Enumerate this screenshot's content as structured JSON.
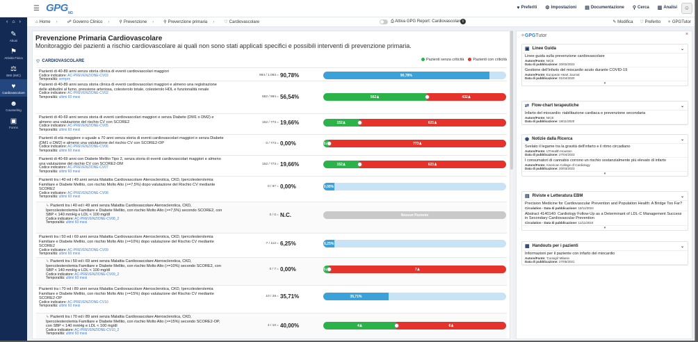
{
  "app": {
    "logo": "GPG",
    "logo_sub": "NG"
  },
  "topnav": {
    "preferiti": "Preferiti",
    "impostazioni": "Impostazioni",
    "documentazione": "Documentazione",
    "cerca": "Cerca",
    "analisi": "Analisi"
  },
  "sidebar": {
    "items": [
      {
        "label": "Abusi",
        "icon": "wrench-icon"
      },
      {
        "label": "Attività Fisica",
        "icon": "running-icon"
      },
      {
        "label": "BMI (IMC)",
        "icon": "scale-icon"
      },
      {
        "label": "Cardiovascolare",
        "icon": "heart-icon"
      },
      {
        "label": "Counseling",
        "icon": "people-icon"
      },
      {
        "label": "Forms",
        "icon": "clipboard-icon"
      }
    ]
  },
  "breadcrumb": {
    "home": "Home",
    "governo": "Governo Clinico",
    "prevenzione": "Prevenzione",
    "primaria": "Prevenzione primaria",
    "cardio": "Cardiovascolare"
  },
  "report": {
    "toggle_label": "Attiva GPG Report: Cardiovascolare",
    "modifica": "Modifica",
    "preferito": "Preferito",
    "gpgtutor": "GPGTutor"
  },
  "page": {
    "title": "Prevenzione Primaria Cardiovascolare",
    "subtitle": "Monitoraggio dei pazienti a rischio cardiovascolare ai quali non sono stati applicati specifici e possibili interventi di prevenzione primaria."
  },
  "card": {
    "title": "CARDIOVASCOLARE",
    "legend_ok": "Pazienti senza criticità",
    "legend_bad": "Pazienti con criticità",
    "code_label": "Codice indicatore:",
    "time_label": "Temporalità:"
  },
  "colors": {
    "green": "#2bb34a",
    "red": "#e5322b",
    "blue": "#3aa1d9",
    "lightblue": "#c7e3f5",
    "navy": "#122a54"
  },
  "indicators": [
    {
      "text": "Pazienti di 40-89 anni senza storia clinica di eventi cardiovascolari maggiori",
      "code": "AC-PREVENZIONE-CV03",
      "time": "sempre",
      "ratio": "994 / 1.093",
      "pct": "90,78%",
      "type": "blue",
      "fill": 0.9078,
      "label": "90,78%"
    },
    {
      "text": "Pazienti di 40-89 anni senza storia clinica di eventi cardiovascolari maggiori e almeno una registrazione delle abitudini al fumo, pressione arteriosa, colesterolo totale, colesterolo HDL e funzionalità renale",
      "code": "AC-PREVENZIONE-CV02",
      "time": "ultimi 60 mesi",
      "ratio": "562 / 994",
      "pct": "56,54%",
      "type": "gr",
      "fill": 0.5654,
      "label": "562",
      "label2": "432"
    },
    {
      "text": "Pazienti di 40-69 anni senza storia di eventi cardiovascolari maggiori e senza Diabete (DM1 o DM2) e almeno una valutazione del rischio CV con SCORE2",
      "code": "AC-PREVENZIONE-CV05",
      "time": "ultimi 60 mesi",
      "ratio": "152 / 773",
      "pct": "19,66%",
      "type": "gr",
      "fill": 0.1966,
      "label": "152",
      "label2": "621"
    },
    {
      "text": "Pazienti di età maggiore o uguale a 70 anni senza storia di eventi cardiovascolari maggiori e senza Diabete (DM1 o DM2) e almeno una valutazione del rischio CV con SCORE2-OP",
      "code": "AC-PREVENZIONE-CV06",
      "time": "ultimi 60 mesi",
      "ratio": "0 / 773",
      "pct": "0,00%",
      "type": "gr",
      "fill": 0.0,
      "label": "0",
      "label2": "773"
    },
    {
      "text": "Pazienti di 40-69 anni con Diabete Mellito Tipo 2, senza storia di eventi cardiovascolari maggiori e almeno una valutazione del rischio CV con SCORE2-DM",
      "code": "AC-PREVENZIONE-CV07",
      "time": "ultimi 60 mesi",
      "ratio": "152 / 773",
      "pct": "19,66%",
      "type": "gr",
      "fill": 0.1966,
      "label": "152",
      "label2": "621"
    },
    {
      "text": "Pazienti tra i 40 ed i 49 anni senza Malattia Cardiovascolare Aterosclerotica, CKD, Ipercolesterolemia Familiare e Diabete Mellito, con rischio Molto Alto (>=7,5%) dopo valutazione del Rischio CV mediante SCORE2",
      "code": "AC-PREVENZIONE-CV08",
      "time": "ultimi 60 mesi",
      "ratio": "0 / 87",
      "pct": "0,00%",
      "type": "blue",
      "fill": 0.0,
      "label": "0,00%"
    },
    {
      "text": "Pazienti tra i 40 ed i 49 anni senza Malattia Cardiovascolare Aterosclerotica, CKD, Ipercolesterolemia Familiare e Diabete Mellito, con rischio Molto Alto (>=7,5%) secondo SCORE2, con SBP < 140 mmHg e LDL < 100 mg/dl",
      "code": "AC-PREVENZIONE-CV08_2",
      "time": "ultimi 60 mesi",
      "ratio": "0 / 0",
      "pct": "N.C.",
      "type": "none",
      "fill": 0,
      "label": "Nessun Paziente",
      "sub": true
    },
    {
      "text": "Pazienti tra i 50 ed i 69 anni senza Malattia Cardiovascolare Aterosclerotica, CKD, Ipercolesterolemia Familiare e Diabete Mellito, con rischio Molto Alto (>=10%) dopo valutazione del Rischio CV mediante SCORE2",
      "code": "AC-PREVENZIONE-CV09",
      "time": "ultimi 60 mesi",
      "ratio": "7 / 112",
      "pct": "6,25%",
      "type": "blue",
      "fill": 0.0625,
      "label": "6,25%"
    },
    {
      "text": "Pazienti tra i 50 ed i 69 anni senza Malattia Cardiovascolare Aterosclerotica, CKD, Ipercolesterolemia Familiare e Diabete Mellito, con rischio Molto Alto (>=10%) secondo SCORE2, con SBP < 140 mmHg e LDL < 100 mg/dl",
      "code": "AC-PREVENZIONE-CV09_2",
      "time": "ultimi 60 mesi",
      "ratio": "0 / 7",
      "pct": "0,00%",
      "type": "gr",
      "fill": 0.0,
      "label": "0",
      "label2": "7",
      "sub": true
    },
    {
      "text": "Pazienti tra i 70 ed i 89 anni senza Malattia Cardiovascolare Aterosclerotica, CKD, Ipercolesterolemia Familiare e Diabete Mellito, con rischio Molto Alto (>=15%) dopo valutazione del Rischio CV mediante SCORE2-OP",
      "code": "AC-PREVENZIONE-CV10",
      "time": "ultimi 60 mesi",
      "ratio": "10 / 28",
      "pct": "35,71%",
      "type": "blue",
      "fill": 0.3571,
      "label": "35,71%"
    },
    {
      "text": "Pazienti tra i 70 ed i 89 anni senza Malattia Cardiovascolare Aterosclerotica, CKD, Ipercolesterolemia Familiare e Diabete Mellito, con rischio Molto Alto (>=15%) secondo SCORE2-OP, con SBP < 140 mmHg e LDL < 100 mg/dl",
      "code": "AC-PREVENZIONE-CV10_2",
      "time": "ultimi 60 mesi",
      "ratio": "4 / 10",
      "pct": "40,00%",
      "type": "gr",
      "fill": 0.4,
      "label": "4",
      "label2": "6",
      "sub": true
    }
  ],
  "tutor": {
    "title_gpg": "GPG",
    "title_rest": "Tutor",
    "meta_author": "Autore/Fonte:",
    "meta_date": "Data di pubblicazione:",
    "meta_circ": "Circulation - Data di pubblicazione:",
    "sections": [
      {
        "title": "Linee Guida",
        "icon": "book-icon",
        "items": [
          {
            "title": "Linee guida sulla prevenzione cardiovascolare",
            "author": "NICE",
            "date": "20/02/2023"
          },
          {
            "title": "Gestione dell'infarto del miocardio acuto durante COVID-19",
            "author": "European Heart Journal",
            "date": "01/04/2020"
          }
        ]
      },
      {
        "title": "Flow-chart terapeutiche",
        "icon": "flow-icon",
        "items": [
          {
            "title": "Infarto del miocardio: riabilitazione cardiaca e prevenzione secondaria",
            "author": "NICE",
            "date": "18/11/2020"
          }
        ]
      },
      {
        "title": "Notizie dalla Ricerca",
        "icon": "news-icon",
        "items": [
          {
            "title": "Svelato il legame tra la gravità dell'infarto e il ritmo circadiano",
            "author": "UTHealth Houston",
            "date": "27/04/2023"
          },
          {
            "title": "I consumatori di cannabis corrono un rischio sostanzialmente più elevato di infarto",
            "author": "American College of Cardiology",
            "date": "20/03/2023"
          }
        ]
      },
      {
        "title": "Riviste e Letteratura EBM",
        "icon": "journal-icon",
        "items": [
          {
            "title": "Precision Medicine for Cardiovascular Prevention and Population Health: A Bridge Too Far?",
            "circ": "18/11/2024"
          },
          {
            "title": "Abstract 4140140: Cardiology Follow-Up as a Determinant of LDL-C Management Success in Secondary Cardiovascular Prevention",
            "circ": "11/11/2024"
          }
        ]
      },
      {
        "title": "Handouts per i pazienti",
        "icon": "handout-icon",
        "items": [
          {
            "title": "Informazioni per il paziente con infarto del miocardio",
            "author": "'Consigli' Milanin",
            "date": "27/05/2021"
          }
        ]
      }
    ]
  }
}
